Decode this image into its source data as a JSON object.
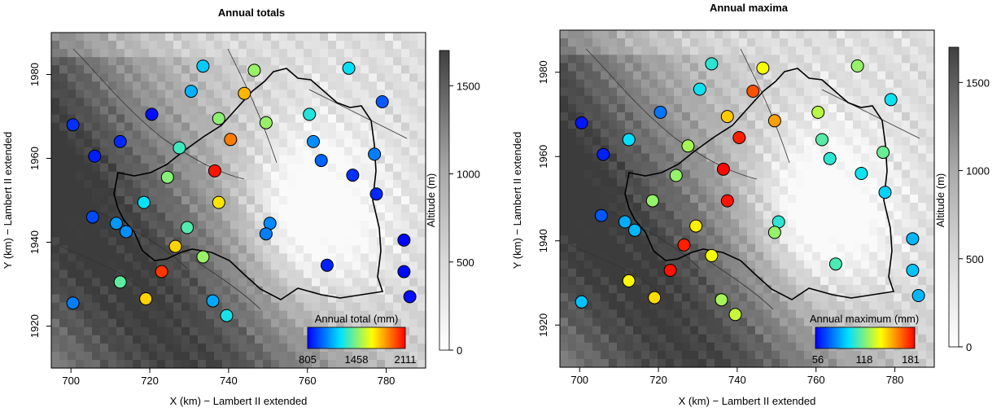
{
  "panels": [
    {
      "title": "Annual totals",
      "xlabel": "X (km) − Lambert II extended",
      "ylabel": "Y (km) − Lambert II extended",
      "xticks": [
        700,
        720,
        740,
        760,
        780
      ],
      "yticks": [
        1920,
        1940,
        1960,
        1980
      ],
      "altitude_label": "Altitude (m)",
      "altitude_ticks": [
        0,
        500,
        1000,
        1500
      ],
      "legend_title": "Annual total (mm)",
      "legend_ticks": [
        "805",
        "1458",
        "2111"
      ],
      "value_range": [
        805,
        2111
      ]
    },
    {
      "title": "Annual maxima",
      "xlabel": "X (km) − Lambert II extended",
      "ylabel": "Y (km) − Lambert II extended",
      "xticks": [
        700,
        720,
        740,
        760,
        780
      ],
      "yticks": [
        1920,
        1940,
        1960,
        1980
      ],
      "altitude_label": "Altitude (m)",
      "altitude_ticks": [
        0,
        500,
        1000,
        1500
      ],
      "legend_title": "Annual maximum (mm)",
      "legend_ticks": [
        "56",
        "118",
        "181"
      ],
      "value_range": [
        56,
        181
      ]
    }
  ],
  "chart_data": {
    "type": "scatter",
    "map_type": "station map over altitude raster",
    "x_range": [
      695,
      790
    ],
    "y_range": [
      1910,
      1990
    ],
    "altitude_range": [
      0,
      1700
    ],
    "colormap": [
      "#0000ff",
      "#00e0ff",
      "#ffff00",
      "#ff0000"
    ],
    "stations": [
      {
        "x": 700.5,
        "y": 1968,
        "total": 900,
        "maximum": 60
      },
      {
        "x": 706,
        "y": 1960.5,
        "total": 860,
        "maximum": 62
      },
      {
        "x": 712.5,
        "y": 1964,
        "total": 880,
        "maximum": 98
      },
      {
        "x": 720.5,
        "y": 1970.5,
        "total": 830,
        "maximum": 78
      },
      {
        "x": 730.5,
        "y": 1976,
        "total": 1150,
        "maximum": 100
      },
      {
        "x": 733.5,
        "y": 1982,
        "total": 1200,
        "maximum": 105
      },
      {
        "x": 746.5,
        "y": 1981,
        "total": 1500,
        "maximum": 138
      },
      {
        "x": 744,
        "y": 1975.5,
        "total": 1800,
        "maximum": 168
      },
      {
        "x": 737.5,
        "y": 1969.5,
        "total": 1480,
        "maximum": 148
      },
      {
        "x": 740.5,
        "y": 1964.5,
        "total": 1900,
        "maximum": 176
      },
      {
        "x": 749.5,
        "y": 1968.5,
        "total": 1500,
        "maximum": 155
      },
      {
        "x": 727.5,
        "y": 1962.5,
        "total": 1350,
        "maximum": 125
      },
      {
        "x": 724.5,
        "y": 1955.5,
        "total": 1470,
        "maximum": 122
      },
      {
        "x": 736.5,
        "y": 1957,
        "total": 2080,
        "maximum": 180
      },
      {
        "x": 718.5,
        "y": 1949.5,
        "total": 1250,
        "maximum": 122
      },
      {
        "x": 737.5,
        "y": 1949.5,
        "total": 1720,
        "maximum": 178
      },
      {
        "x": 729.5,
        "y": 1943.5,
        "total": 1380,
        "maximum": 142
      },
      {
        "x": 705.5,
        "y": 1946,
        "total": 950,
        "maximum": 72
      },
      {
        "x": 711.5,
        "y": 1944.5,
        "total": 1100,
        "maximum": 88
      },
      {
        "x": 714,
        "y": 1942.5,
        "total": 1080,
        "maximum": 90
      },
      {
        "x": 726.5,
        "y": 1939,
        "total": 1750,
        "maximum": 176
      },
      {
        "x": 733.5,
        "y": 1936.5,
        "total": 1500,
        "maximum": 138
      },
      {
        "x": 723,
        "y": 1933,
        "total": 2020,
        "maximum": 178
      },
      {
        "x": 712.5,
        "y": 1930.5,
        "total": 1400,
        "maximum": 140
      },
      {
        "x": 700.5,
        "y": 1925.5,
        "total": 1050,
        "maximum": 92
      },
      {
        "x": 719,
        "y": 1926.5,
        "total": 1750,
        "maximum": 145
      },
      {
        "x": 736,
        "y": 1926,
        "total": 1130,
        "maximum": 125
      },
      {
        "x": 739.5,
        "y": 1922.5,
        "total": 1280,
        "maximum": 130
      },
      {
        "x": 750.5,
        "y": 1944.5,
        "total": 1070,
        "maximum": 105
      },
      {
        "x": 749.5,
        "y": 1942,
        "total": 1050,
        "maximum": 122
      },
      {
        "x": 760.5,
        "y": 1970.5,
        "total": 1300,
        "maximum": 128
      },
      {
        "x": 761.5,
        "y": 1964,
        "total": 1080,
        "maximum": 112
      },
      {
        "x": 763.5,
        "y": 1959.5,
        "total": 1000,
        "maximum": 105
      },
      {
        "x": 765,
        "y": 1934.5,
        "total": 870,
        "maximum": 110
      },
      {
        "x": 770.5,
        "y": 1981.5,
        "total": 1250,
        "maximum": 122
      },
      {
        "x": 777,
        "y": 1961,
        "total": 1050,
        "maximum": 115
      },
      {
        "x": 779,
        "y": 1973.5,
        "total": 980,
        "maximum": 100
      },
      {
        "x": 771.5,
        "y": 1956,
        "total": 900,
        "maximum": 100
      },
      {
        "x": 777.5,
        "y": 1951.5,
        "total": 880,
        "maximum": 95
      },
      {
        "x": 784.5,
        "y": 1940.5,
        "total": 810,
        "maximum": 90
      },
      {
        "x": 784.5,
        "y": 1933,
        "total": 820,
        "maximum": 92
      },
      {
        "x": 786,
        "y": 1927,
        "total": 830,
        "maximum": 90
      }
    ]
  }
}
